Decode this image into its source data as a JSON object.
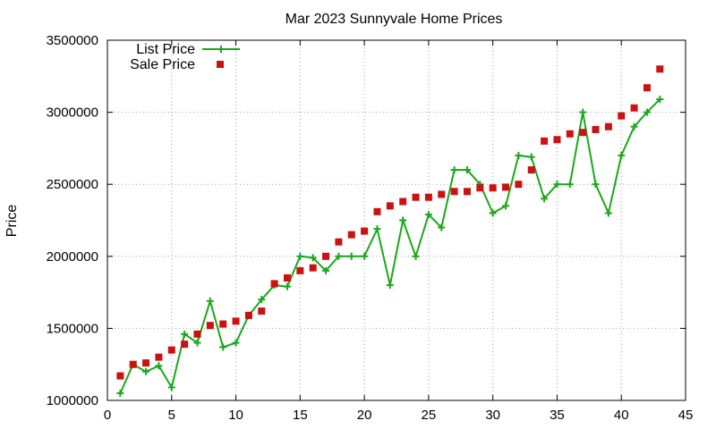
{
  "chart_data": {
    "type": "line",
    "title": "Mar 2023 Sunnyvale Home Prices",
    "xlabel": "",
    "ylabel": "Price",
    "xlim": [
      0,
      45
    ],
    "ylim": [
      1000000,
      3500000
    ],
    "xticks": [
      0,
      5,
      10,
      15,
      20,
      25,
      30,
      35,
      40,
      45
    ],
    "yticks": [
      1000000,
      1500000,
      2000000,
      2500000,
      3000000,
      3500000
    ],
    "xtick_labels": [
      "0",
      "5",
      "10",
      "15",
      "20",
      "25",
      "30",
      "35",
      "40",
      "45"
    ],
    "ytick_labels": [
      "1000000",
      "1500000",
      "2000000",
      "2500000",
      "3000000",
      "3500000"
    ],
    "grid": true,
    "legend_position": "top-left",
    "series": [
      {
        "name": "List Price",
        "style": "linespoints",
        "color": "#1aa81a",
        "marker": "plus",
        "x": [
          1,
          2,
          3,
          4,
          5,
          6,
          7,
          8,
          9,
          10,
          11,
          12,
          13,
          14,
          15,
          16,
          17,
          18,
          19,
          20,
          21,
          22,
          23,
          24,
          25,
          26,
          27,
          28,
          29,
          30,
          31,
          32,
          33,
          34,
          35,
          36,
          37,
          38,
          39,
          40,
          41,
          42,
          43
        ],
        "y": [
          1050000,
          1250000,
          1200000,
          1240000,
          1090000,
          1460000,
          1400000,
          1690000,
          1370000,
          1400000,
          1590000,
          1700000,
          1800000,
          1790000,
          2000000,
          1990000,
          1900000,
          2000000,
          2000000,
          2000000,
          2190000,
          1800000,
          2250000,
          2000000,
          2290000,
          2200000,
          2600000,
          2600000,
          2500000,
          2300000,
          2350000,
          2700000,
          2690000,
          2400000,
          2500000,
          2500000,
          3000000,
          2500000,
          2300000,
          2700000,
          2900000,
          3000000,
          3090000
        ]
      },
      {
        "name": "Sale Price",
        "style": "points",
        "color": "#cc1111",
        "marker": "square",
        "x": [
          1,
          2,
          3,
          4,
          5,
          6,
          7,
          8,
          9,
          10,
          11,
          12,
          13,
          14,
          15,
          16,
          17,
          18,
          19,
          20,
          21,
          22,
          23,
          24,
          25,
          26,
          27,
          28,
          29,
          30,
          31,
          32,
          33,
          34,
          35,
          36,
          37,
          38,
          39,
          40,
          41,
          42,
          43
        ],
        "y": [
          1170000,
          1250000,
          1260000,
          1300000,
          1350000,
          1390000,
          1460000,
          1520000,
          1530000,
          1550000,
          1590000,
          1620000,
          1810000,
          1850000,
          1900000,
          1920000,
          2000000,
          2100000,
          2150000,
          2175000,
          2310000,
          2350000,
          2380000,
          2410000,
          2410000,
          2430000,
          2450000,
          2450000,
          2475000,
          2475000,
          2480000,
          2500000,
          2600000,
          2800000,
          2810000,
          2850000,
          2860000,
          2880000,
          2900000,
          2975000,
          3030000,
          3170000,
          3300000
        ]
      }
    ]
  }
}
